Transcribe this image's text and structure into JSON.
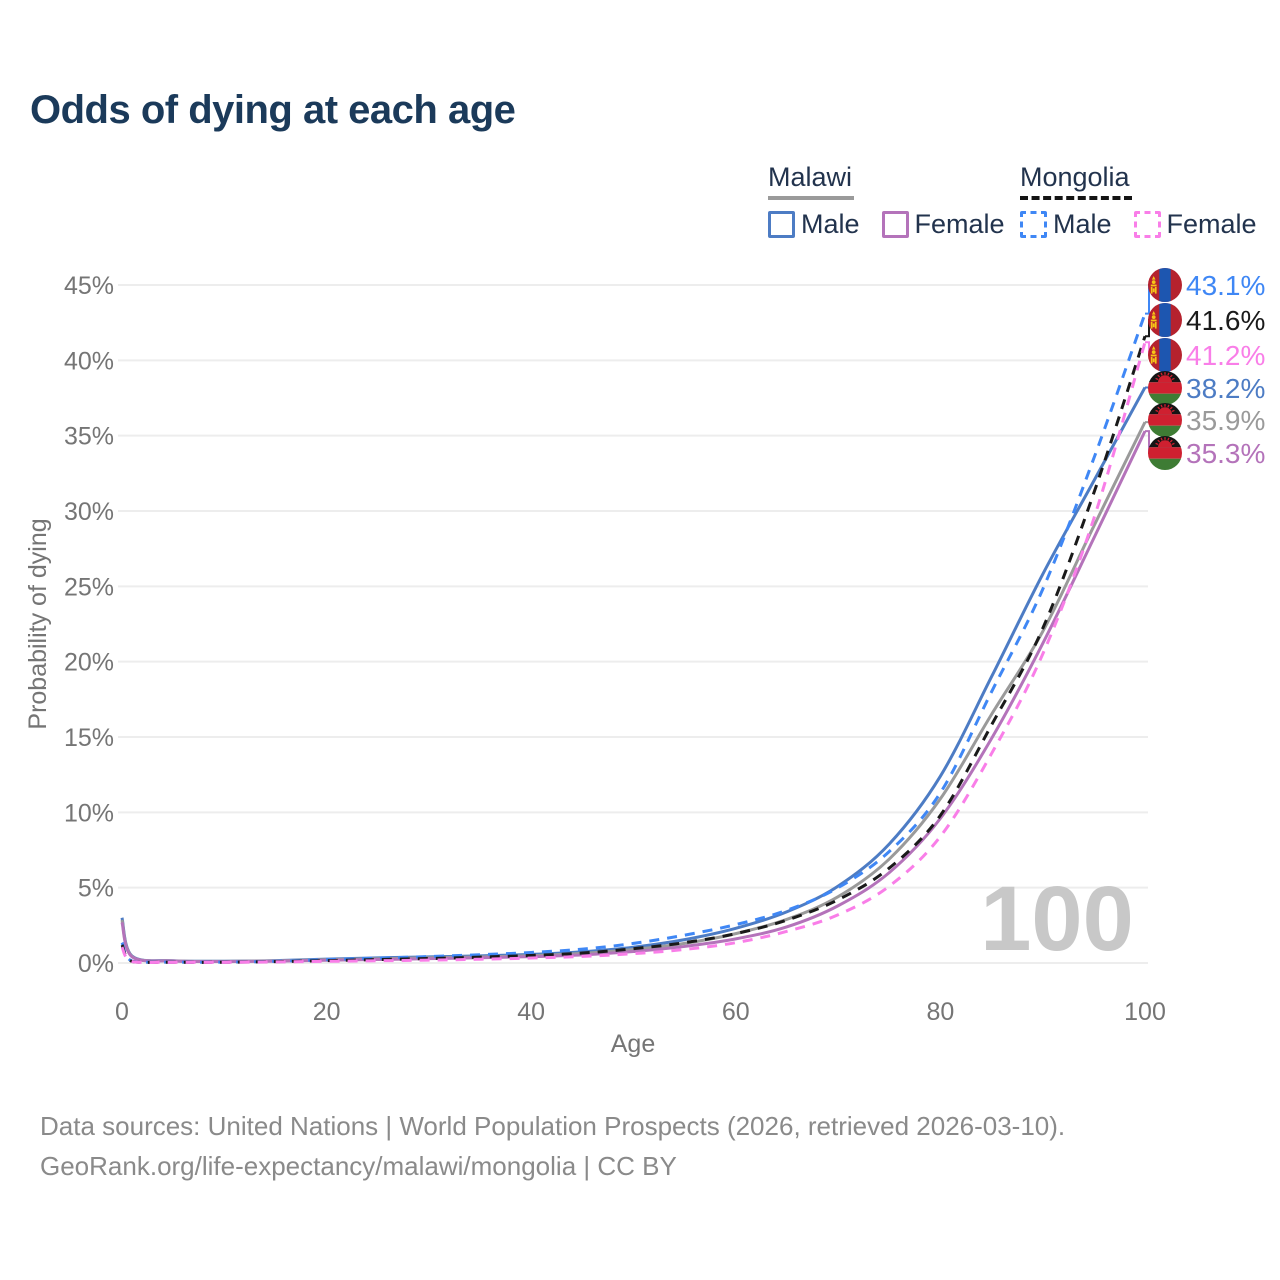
{
  "title": "Odds of dying at each age",
  "legend": {
    "groups": [
      {
        "label": "Malawi",
        "line_style": "solid",
        "underline_color": "#9a9a9a",
        "items": [
          {
            "label": "Male",
            "series_id": "malawi-male"
          },
          {
            "label": "Female",
            "series_id": "malawi-female"
          }
        ]
      },
      {
        "label": "Mongolia",
        "line_style": "dashed",
        "underline_color": "#141414",
        "items": [
          {
            "label": "Male",
            "series_id": "mongolia-male"
          },
          {
            "label": "Female",
            "series_id": "mongolia-female"
          }
        ]
      }
    ]
  },
  "chart_data": {
    "type": "line",
    "title": "Odds of dying at each age",
    "xlabel": "Age",
    "ylabel": "Probability of dying",
    "xlim": [
      0,
      100
    ],
    "ylim": [
      0,
      45
    ],
    "xticks": [
      0,
      20,
      40,
      60,
      80,
      100
    ],
    "yticks": [
      "0%",
      "5%",
      "10%",
      "15%",
      "20%",
      "25%",
      "30%",
      "35%",
      "40%",
      "45%"
    ],
    "grid": "horizontal",
    "legend_position": "top-right",
    "hover_age_watermark": "100",
    "x": [
      0,
      1,
      5,
      10,
      15,
      20,
      25,
      30,
      35,
      40,
      45,
      50,
      55,
      60,
      65,
      70,
      75,
      80,
      85,
      90,
      95,
      100
    ],
    "series": [
      {
        "id": "malawi-male",
        "name": "Malawi Male",
        "country": "Malawi",
        "sex": "Male",
        "color": "#4d7cc4",
        "dashed": false,
        "end_label": "38.2%",
        "values": [
          3.0,
          0.45,
          0.15,
          0.12,
          0.16,
          0.26,
          0.34,
          0.41,
          0.47,
          0.57,
          0.75,
          1.05,
          1.55,
          2.3,
          3.4,
          5.1,
          7.9,
          12.4,
          19.0,
          25.8,
          32.0,
          38.2
        ]
      },
      {
        "id": "malawi-both",
        "name": "Malawi (both sexes)",
        "country": "Malawi",
        "sex": "Both",
        "color": "#9a9a9a",
        "dashed": false,
        "end_label": "35.9%",
        "values": [
          2.85,
          0.42,
          0.14,
          0.11,
          0.14,
          0.22,
          0.28,
          0.35,
          0.41,
          0.49,
          0.64,
          0.9,
          1.3,
          1.95,
          2.9,
          4.4,
          6.9,
          10.9,
          16.5,
          22.0,
          29.0,
          35.9
        ]
      },
      {
        "id": "malawi-female",
        "name": "Malawi Female",
        "country": "Malawi",
        "sex": "Female",
        "color": "#b473ba",
        "dashed": false,
        "end_label": "35.3%",
        "values": [
          2.7,
          0.4,
          0.13,
          0.1,
          0.12,
          0.18,
          0.23,
          0.29,
          0.35,
          0.42,
          0.54,
          0.76,
          1.1,
          1.6,
          2.4,
          3.8,
          6.0,
          9.6,
          14.9,
          21.2,
          28.2,
          35.3
        ]
      },
      {
        "id": "mongolia-male",
        "name": "Mongolia Male",
        "country": "Mongolia",
        "sex": "Male",
        "color": "#3f87f5",
        "dashed": true,
        "end_label": "43.1%",
        "values": [
          1.35,
          0.12,
          0.06,
          0.06,
          0.11,
          0.22,
          0.32,
          0.43,
          0.55,
          0.7,
          0.92,
          1.3,
          1.85,
          2.55,
          3.5,
          5.0,
          7.4,
          11.3,
          18.0,
          24.8,
          33.5,
          43.1
        ]
      },
      {
        "id": "mongolia-both",
        "name": "Mongolia (both sexes)",
        "country": "Mongolia",
        "sex": "Both",
        "color": "#1a1a1a",
        "dashed": true,
        "end_label": "41.6%",
        "values": [
          1.2,
          0.1,
          0.05,
          0.05,
          0.09,
          0.16,
          0.23,
          0.3,
          0.39,
          0.5,
          0.66,
          0.95,
          1.35,
          1.95,
          2.85,
          4.2,
          6.3,
          9.8,
          15.8,
          22.2,
          31.2,
          41.6
        ]
      },
      {
        "id": "mongolia-female",
        "name": "Mongolia Female",
        "country": "Mongolia",
        "sex": "Female",
        "color": "#f97ee8",
        "dashed": true,
        "end_label": "41.2%",
        "values": [
          1.05,
          0.09,
          0.045,
          0.045,
          0.07,
          0.11,
          0.15,
          0.19,
          0.25,
          0.33,
          0.44,
          0.62,
          0.9,
          1.35,
          2.1,
          3.2,
          5.1,
          8.4,
          13.9,
          20.5,
          29.5,
          41.2
        ]
      }
    ]
  },
  "footer": {
    "line1": "Data sources: United Nations | World Population Prospects (2026, retrieved 2026-03-10).",
    "line2": "GeoRank.org/life-expectancy/malawi/mongolia | CC BY"
  }
}
